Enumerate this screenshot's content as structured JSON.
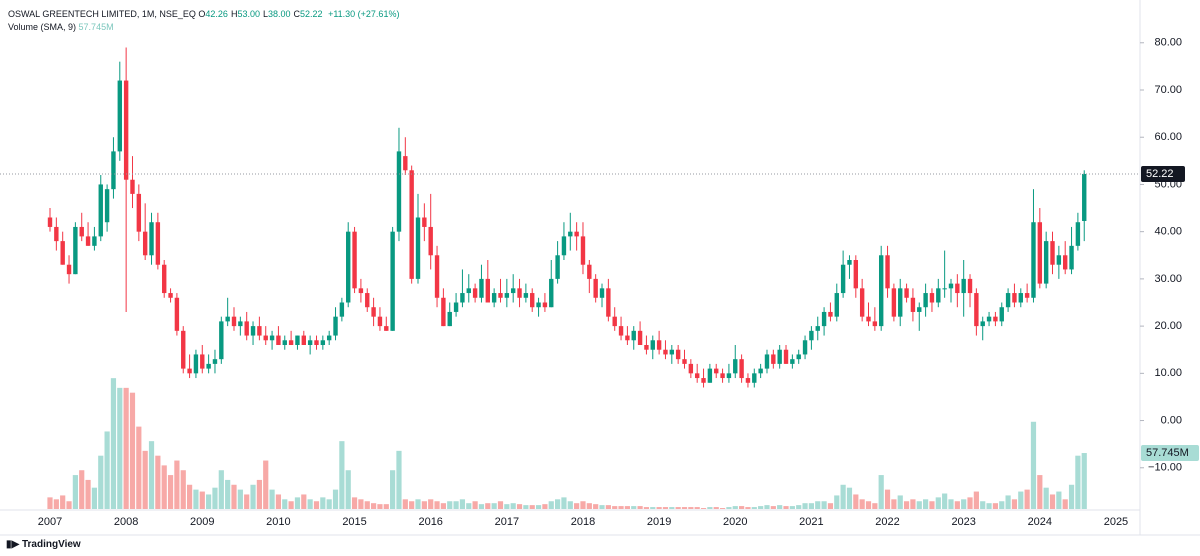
{
  "chart_data": {
    "type": "candlestick",
    "title": "OSWAL GREENTECH LIMITED, 1M, NSE_EQ",
    "ohlc_legend": [
      {
        "label": "O",
        "value": "42.26"
      },
      {
        "label": "H",
        "value": "53.00"
      },
      {
        "label": "L",
        "value": "38.00"
      },
      {
        "label": "C",
        "value": "52.22"
      }
    ],
    "change": "+11.30 (+27.61%)",
    "volume_title": "Volume (SMA, 9)",
    "volume_sma": "57.745M",
    "categories": [
      "2007",
      null,
      null,
      null,
      null,
      null,
      null,
      null,
      null,
      null,
      null,
      null,
      "2008",
      null,
      null,
      null,
      null,
      null,
      null,
      null,
      null,
      null,
      null,
      null,
      "2009",
      null,
      null,
      null,
      null,
      null,
      null,
      null,
      null,
      null,
      null,
      null,
      "2010",
      null,
      null,
      null,
      null,
      null,
      null,
      null,
      null,
      null,
      null,
      null,
      "2015",
      null,
      null,
      null,
      null,
      null,
      null,
      null,
      null,
      null,
      null,
      null,
      "2016",
      null,
      null,
      null,
      null,
      null,
      null,
      null,
      null,
      null,
      null,
      null,
      "2017",
      null,
      null,
      null,
      null,
      null,
      null,
      null,
      null,
      null,
      null,
      null,
      "2018",
      null,
      null,
      null,
      null,
      null,
      null,
      null,
      null,
      null,
      null,
      null,
      "2019",
      null,
      null,
      null,
      null,
      null,
      null,
      null,
      null,
      null,
      null,
      null,
      "2020",
      null,
      null,
      null,
      null,
      null,
      null,
      null,
      null,
      null,
      null,
      null,
      "2021",
      null,
      null,
      null,
      null,
      null,
      null,
      null,
      null,
      null,
      null,
      null,
      "2022",
      null,
      null,
      null,
      null,
      null,
      null,
      null,
      null,
      null,
      null,
      null,
      "2023",
      null,
      null,
      null,
      null,
      null,
      null,
      null,
      null,
      null,
      null,
      null,
      "2024",
      null,
      null,
      null,
      null,
      null,
      null,
      null
    ],
    "future_year_label": "2025",
    "ohlc": [
      [
        43,
        45,
        40,
        41
      ],
      [
        41,
        43,
        36,
        38
      ],
      [
        38,
        40,
        33,
        33
      ],
      [
        33,
        35,
        29,
        31
      ],
      [
        31,
        42,
        31,
        41
      ],
      [
        41,
        44,
        38,
        39
      ],
      [
        39,
        42,
        37,
        37
      ],
      [
        37,
        41,
        36,
        39
      ],
      [
        39,
        52,
        38,
        50
      ],
      [
        42,
        50,
        40,
        49
      ],
      [
        49,
        60,
        47,
        57
      ],
      [
        57,
        76,
        55,
        72
      ],
      [
        72,
        79,
        23,
        51
      ],
      [
        51,
        56,
        45,
        48
      ],
      [
        48,
        50,
        38,
        40
      ],
      [
        40,
        46,
        34,
        35
      ],
      [
        35,
        44,
        33,
        42
      ],
      [
        42,
        44,
        32,
        33
      ],
      [
        33,
        34,
        26,
        27
      ],
      [
        27,
        28,
        25,
        26
      ],
      [
        26,
        27,
        18,
        19
      ],
      [
        19,
        20,
        10,
        11
      ],
      [
        11,
        14,
        9,
        10
      ],
      [
        10,
        15,
        9,
        14
      ],
      [
        14,
        16,
        10,
        11
      ],
      [
        11,
        14,
        10,
        12
      ],
      [
        12,
        15,
        10,
        13
      ],
      [
        13,
        22,
        12,
        21
      ],
      [
        21,
        26,
        20,
        22
      ],
      [
        22,
        24,
        19,
        20
      ],
      [
        20,
        22,
        18,
        21
      ],
      [
        21,
        23,
        17,
        18
      ],
      [
        18,
        21,
        16,
        20
      ],
      [
        20,
        22,
        17,
        18
      ],
      [
        18,
        20,
        16,
        17
      ],
      [
        17,
        19,
        15,
        18
      ],
      [
        18,
        20,
        16,
        16
      ],
      [
        16,
        18,
        15,
        17
      ],
      [
        17,
        19,
        16,
        16
      ],
      [
        16,
        18,
        15,
        18
      ],
      [
        18,
        19,
        16,
        16
      ],
      [
        16,
        18,
        14,
        17
      ],
      [
        17,
        18,
        15,
        16
      ],
      [
        16,
        18,
        15,
        17
      ],
      [
        17,
        19,
        16,
        18
      ],
      [
        18,
        24,
        17,
        22
      ],
      [
        22,
        26,
        21,
        25
      ],
      [
        25,
        42,
        24,
        40
      ],
      [
        40,
        41,
        27,
        28
      ],
      [
        28,
        30,
        25,
        27
      ],
      [
        27,
        28,
        23,
        24
      ],
      [
        24,
        26,
        20,
        22
      ],
      [
        22,
        24,
        19,
        20
      ],
      [
        20,
        22,
        19,
        19
      ],
      [
        19,
        41,
        19,
        40
      ],
      [
        40,
        62,
        38,
        57
      ],
      [
        56,
        60,
        52,
        53
      ],
      [
        53,
        54,
        29,
        30
      ],
      [
        30,
        48,
        29,
        43
      ],
      [
        43,
        46,
        38,
        41
      ],
      [
        41,
        48,
        32,
        35
      ],
      [
        35,
        37,
        24,
        26
      ],
      [
        26,
        28,
        20,
        20
      ],
      [
        20,
        25,
        20,
        23
      ],
      [
        23,
        27,
        22,
        25
      ],
      [
        25,
        32,
        24,
        27
      ],
      [
        27,
        31,
        25,
        28
      ],
      [
        28,
        29,
        25,
        26
      ],
      [
        26,
        33,
        25,
        30
      ],
      [
        30,
        34,
        25,
        25
      ],
      [
        25,
        28,
        24,
        27
      ],
      [
        27,
        30,
        25,
        26
      ],
      [
        26,
        30,
        24,
        27
      ],
      [
        27,
        31,
        25,
        28
      ],
      [
        28,
        30,
        24,
        26
      ],
      [
        26,
        29,
        25,
        27
      ],
      [
        27,
        28,
        23,
        24
      ],
      [
        24,
        26,
        22,
        25
      ],
      [
        25,
        27,
        23,
        24
      ],
      [
        24,
        34,
        24,
        30
      ],
      [
        30,
        38,
        29,
        35
      ],
      [
        35,
        42,
        34,
        39
      ],
      [
        39,
        44,
        36,
        40
      ],
      [
        40,
        42,
        36,
        39
      ],
      [
        39,
        42,
        31,
        33
      ],
      [
        33,
        34,
        27,
        30
      ],
      [
        30,
        31,
        25,
        26
      ],
      [
        26,
        29,
        24,
        28
      ],
      [
        28,
        30,
        21,
        22
      ],
      [
        22,
        24,
        19,
        20
      ],
      [
        20,
        22,
        17,
        18
      ],
      [
        18,
        20,
        16,
        17
      ],
      [
        17,
        20,
        15,
        19
      ],
      [
        19,
        21,
        16,
        16
      ],
      [
        16,
        18,
        14,
        15
      ],
      [
        15,
        18,
        13,
        17
      ],
      [
        17,
        19,
        14,
        15
      ],
      [
        15,
        17,
        13,
        14
      ],
      [
        14,
        16,
        12,
        15
      ],
      [
        15,
        16,
        12,
        13
      ],
      [
        13,
        15,
        11,
        12
      ],
      [
        12,
        13,
        9,
        10
      ],
      [
        10,
        12,
        8,
        9
      ],
      [
        9,
        11,
        7,
        8
      ],
      [
        8,
        12,
        8,
        11
      ],
      [
        11,
        12,
        9,
        10
      ],
      [
        10,
        11,
        8,
        9
      ],
      [
        9,
        12,
        8,
        10
      ],
      [
        10,
        16,
        9,
        13
      ],
      [
        13,
        14,
        8,
        9
      ],
      [
        9,
        10,
        7,
        8
      ],
      [
        8,
        11,
        7,
        10
      ],
      [
        10,
        12,
        9,
        11
      ],
      [
        11,
        15,
        10,
        14
      ],
      [
        14,
        15,
        11,
        12
      ],
      [
        12,
        16,
        11,
        15
      ],
      [
        15,
        16,
        12,
        12
      ],
      [
        12,
        14,
        11,
        13
      ],
      [
        13,
        15,
        12,
        14
      ],
      [
        14,
        18,
        13,
        17
      ],
      [
        17,
        20,
        15,
        19
      ],
      [
        19,
        22,
        17,
        20
      ],
      [
        20,
        24,
        18,
        23
      ],
      [
        23,
        25,
        21,
        22
      ],
      [
        22,
        29,
        21,
        27
      ],
      [
        27,
        36,
        26,
        33
      ],
      [
        33,
        35,
        30,
        34
      ],
      [
        34,
        35,
        26,
        28
      ],
      [
        28,
        30,
        21,
        22
      ],
      [
        22,
        25,
        20,
        21
      ],
      [
        21,
        24,
        19,
        20
      ],
      [
        20,
        37,
        19,
        35
      ],
      [
        35,
        37,
        26,
        28
      ],
      [
        28,
        29,
        21,
        22
      ],
      [
        22,
        30,
        20,
        28
      ],
      [
        28,
        29,
        25,
        26
      ],
      [
        26,
        28,
        21,
        23
      ],
      [
        23,
        25,
        19,
        24
      ],
      [
        24,
        29,
        22,
        27
      ],
      [
        27,
        28,
        23,
        25
      ],
      [
        25,
        30,
        24,
        28
      ],
      [
        28,
        36,
        26,
        28
      ],
      [
        28,
        30,
        25,
        29
      ],
      [
        29,
        31,
        24,
        27
      ],
      [
        27,
        34,
        22,
        30
      ],
      [
        30,
        31,
        24,
        27
      ],
      [
        27,
        28,
        18,
        20
      ],
      [
        20,
        22,
        17,
        21
      ],
      [
        21,
        23,
        20,
        22
      ],
      [
        22,
        23,
        20,
        21
      ],
      [
        21,
        25,
        20,
        24
      ],
      [
        24,
        28,
        23,
        27
      ],
      [
        27,
        29,
        24,
        25
      ],
      [
        25,
        28,
        24,
        27
      ],
      [
        27,
        29,
        25,
        26
      ],
      [
        26,
        49,
        25,
        42
      ],
      [
        42,
        45,
        28,
        29
      ],
      [
        29,
        40,
        28,
        38
      ],
      [
        38,
        40,
        31,
        33
      ],
      [
        33,
        37,
        30,
        35
      ],
      [
        35,
        38,
        31,
        32
      ],
      [
        32,
        41,
        31,
        37
      ],
      [
        37,
        44,
        36,
        42
      ],
      [
        42.26,
        53.0,
        38.0,
        52.22
      ]
    ],
    "volume": [
      12,
      10,
      14,
      8,
      35,
      40,
      30,
      22,
      55,
      80,
      135,
      125,
      125,
      120,
      85,
      60,
      70,
      55,
      45,
      35,
      50,
      40,
      25,
      20,
      18,
      15,
      22,
      40,
      30,
      25,
      20,
      15,
      25,
      30,
      50,
      20,
      15,
      10,
      8,
      12,
      15,
      10,
      8,
      12,
      10,
      20,
      70,
      40,
      12,
      10,
      8,
      6,
      5,
      5,
      40,
      60,
      10,
      8,
      10,
      8,
      10,
      8,
      6,
      8,
      8,
      10,
      6,
      8,
      5,
      6,
      6,
      8,
      5,
      6,
      5,
      4,
      4,
      4,
      5,
      8,
      10,
      12,
      8,
      6,
      8,
      6,
      5,
      4,
      4,
      3,
      3,
      3,
      3,
      3,
      2,
      2,
      2,
      2,
      2,
      2,
      2,
      2,
      2,
      1,
      2,
      2,
      1,
      2,
      3,
      3,
      2,
      2,
      3,
      4,
      3,
      4,
      3,
      3,
      4,
      6,
      6,
      8,
      8,
      6,
      14,
      25,
      22,
      15,
      10,
      8,
      6,
      35,
      20,
      10,
      14,
      8,
      10,
      8,
      10,
      8,
      12,
      16,
      10,
      8,
      10,
      12,
      18,
      8,
      6,
      6,
      8,
      14,
      10,
      18,
      20,
      90,
      35,
      22,
      15,
      18,
      10,
      25,
      55,
      57.745
    ],
    "volume_last_label": "57.745M",
    "last_price_label": "52.22",
    "ylim": [
      -20,
      88
    ],
    "yticks": [
      {
        "value": 80,
        "label": "80.00"
      },
      {
        "value": 70,
        "label": "70.00"
      },
      {
        "value": 60,
        "label": "60.00"
      },
      {
        "value": 50,
        "label": "50.00"
      },
      {
        "value": 40,
        "label": "40.00"
      },
      {
        "value": 30,
        "label": "30.00"
      },
      {
        "value": 20,
        "label": "20.00"
      },
      {
        "value": 10,
        "label": "10.00"
      },
      {
        "value": 0,
        "label": "0.00"
      },
      {
        "value": -10,
        "label": "−10.00"
      }
    ],
    "volume_lim": [
      0,
      520
    ],
    "grid": false,
    "up_color": "#089981",
    "down_color": "#f23645",
    "volume_up_color": "#a8dcd5",
    "volume_down_color": "#f7a9a7",
    "footer": "TradingView"
  }
}
